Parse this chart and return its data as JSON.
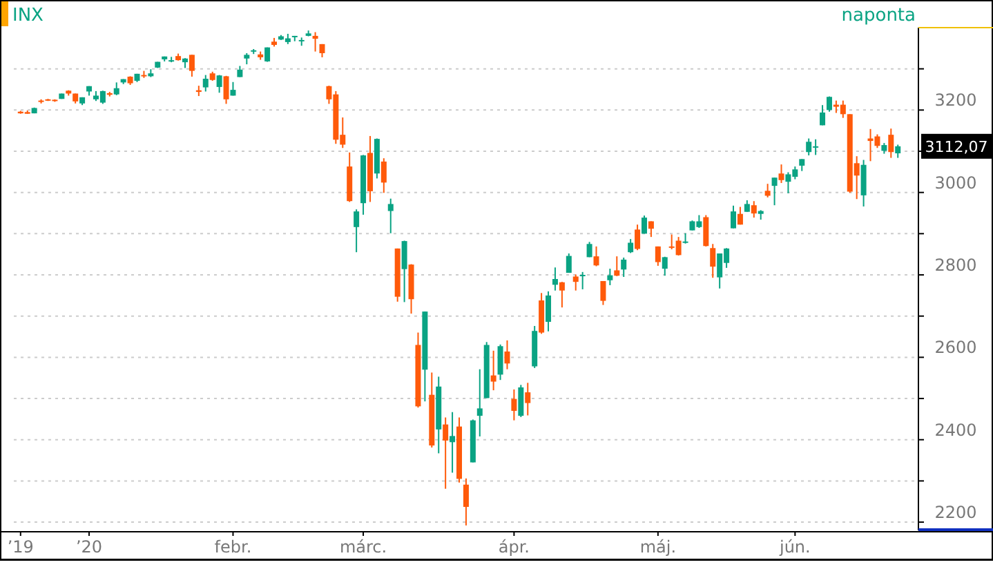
{
  "chart_data": {
    "type": "candlestick",
    "title": "INX",
    "subtitle": "naponta",
    "categories": [
      "’19",
      null,
      null,
      null,
      null,
      null,
      null,
      null,
      null,
      null,
      "’20",
      null,
      null,
      null,
      null,
      null,
      null,
      null,
      null,
      null,
      null,
      null,
      null,
      null,
      null,
      null,
      null,
      null,
      null,
      null,
      null,
      "febr.",
      null,
      null,
      null,
      null,
      null,
      null,
      null,
      null,
      null,
      null,
      null,
      null,
      null,
      null,
      null,
      null,
      null,
      null,
      "márc.",
      null,
      null,
      null,
      null,
      null,
      null,
      null,
      null,
      null,
      null,
      null,
      null,
      null,
      null,
      null,
      null,
      null,
      null,
      null,
      null,
      null,
      "ápr.",
      null,
      null,
      null,
      null,
      null,
      null,
      null,
      null,
      null,
      null,
      null,
      null,
      null,
      null,
      null,
      null,
      null,
      null,
      null,
      null,
      "máj.",
      null,
      null,
      null,
      null,
      null,
      null,
      null,
      null,
      null,
      null,
      null,
      null,
      null,
      null,
      null,
      null,
      null,
      null,
      null,
      "jún.",
      null,
      null,
      null,
      null,
      null,
      null,
      null,
      null,
      null,
      null,
      null,
      null,
      null,
      null,
      null
    ],
    "ohlc": [
      [
        3196,
        3198,
        3191,
        3192
      ],
      [
        3195,
        3199,
        3191,
        3191
      ],
      [
        3192,
        3206,
        3192,
        3205
      ],
      [
        3223,
        3226,
        3216,
        3221
      ],
      [
        3226,
        3227,
        3222,
        3224
      ],
      [
        3225,
        3226,
        3220,
        3223
      ],
      [
        3227,
        3240,
        3227,
        3240
      ],
      [
        3247,
        3248,
        3235,
        3240
      ],
      [
        3240,
        3240,
        3216,
        3221
      ],
      [
        3216,
        3231,
        3212,
        3231
      ],
      [
        3245,
        3258,
        3235,
        3258
      ],
      [
        3226,
        3246,
        3222,
        3235
      ],
      [
        3218,
        3247,
        3215,
        3246
      ],
      [
        3241,
        3244,
        3233,
        3237
      ],
      [
        3238,
        3267,
        3236,
        3253
      ],
      [
        3267,
        3275,
        3263,
        3275
      ],
      [
        3281,
        3282,
        3261,
        3265
      ],
      [
        3271,
        3288,
        3268,
        3288
      ],
      [
        3285,
        3295,
        3278,
        3283
      ],
      [
        3282,
        3299,
        3280,
        3289
      ],
      [
        3303,
        3317,
        3302,
        3317
      ],
      [
        3323,
        3330,
        3318,
        3330
      ],
      [
        3321,
        3329,
        3316,
        3321
      ],
      [
        3331,
        3337,
        3320,
        3321
      ],
      [
        3316,
        3326,
        3302,
        3325
      ],
      [
        3334,
        3334,
        3281,
        3295
      ],
      [
        3248,
        3259,
        3234,
        3244
      ],
      [
        3255,
        3285,
        3245,
        3276
      ],
      [
        3289,
        3293,
        3271,
        3273
      ],
      [
        3256,
        3285,
        3242,
        3284
      ],
      [
        3282,
        3283,
        3215,
        3226
      ],
      [
        3235,
        3268,
        3235,
        3249
      ],
      [
        3280,
        3307,
        3280,
        3298
      ],
      [
        3325,
        3338,
        3311,
        3334
      ],
      [
        3344,
        3348,
        3336,
        3345
      ],
      [
        3335,
        3342,
        3322,
        3328
      ],
      [
        3318,
        3352,
        3317,
        3352
      ],
      [
        3366,
        3375,
        3354,
        3358
      ],
      [
        3371,
        3382,
        3370,
        3379
      ],
      [
        3365,
        3385,
        3360,
        3374
      ],
      [
        3378,
        3380,
        3367,
        3380
      ],
      [
        3369,
        3376,
        3356,
        3370
      ],
      [
        3380,
        3393,
        3379,
        3386
      ],
      [
        3380,
        3389,
        3342,
        3373
      ],
      [
        3360,
        3360,
        3328,
        3338
      ],
      [
        3258,
        3259,
        3215,
        3226
      ],
      [
        3238,
        3246,
        3118,
        3128
      ],
      [
        3140,
        3182,
        3108,
        3116
      ],
      [
        3063,
        3097,
        2977,
        2979
      ],
      [
        2916,
        2959,
        2855,
        2954
      ],
      [
        2974,
        3091,
        2946,
        3090
      ],
      [
        3096,
        3137,
        2977,
        3003
      ],
      [
        3046,
        3131,
        3034,
        3130
      ],
      [
        3075,
        3083,
        2999,
        3024
      ],
      [
        2955,
        2985,
        2901,
        2972
      ],
      [
        2864,
        2864,
        2735,
        2747
      ],
      [
        2814,
        2883,
        2734,
        2882
      ],
      [
        2825,
        2826,
        2706,
        2741
      ],
      [
        2630,
        2660,
        2478,
        2481
      ],
      [
        2570,
        2711,
        2493,
        2711
      ],
      [
        2509,
        2563,
        2381,
        2386
      ],
      [
        2425,
        2553,
        2367,
        2529
      ],
      [
        2437,
        2454,
        2281,
        2398
      ],
      [
        2394,
        2467,
        2320,
        2409
      ],
      [
        2432,
        2454,
        2296,
        2305
      ],
      [
        2291,
        2306,
        2192,
        2237
      ],
      [
        2345,
        2449,
        2345,
        2447
      ],
      [
        2458,
        2571,
        2408,
        2476
      ],
      [
        2501,
        2637,
        2501,
        2630
      ],
      [
        2556,
        2616,
        2520,
        2541
      ],
      [
        2558,
        2631,
        2545,
        2627
      ],
      [
        2614,
        2641,
        2571,
        2585
      ],
      [
        2499,
        2522,
        2447,
        2470
      ],
      [
        2458,
        2533,
        2455,
        2527
      ],
      [
        2515,
        2538,
        2459,
        2489
      ],
      [
        2578,
        2676,
        2574,
        2664
      ],
      [
        2738,
        2756,
        2657,
        2660
      ],
      [
        2686,
        2760,
        2663,
        2750
      ],
      [
        2776,
        2818,
        2762,
        2790
      ],
      [
        2782,
        2783,
        2721,
        2762
      ],
      [
        2805,
        2852,
        2805,
        2846
      ],
      [
        2796,
        2801,
        2762,
        2783
      ],
      [
        2799,
        2807,
        2765,
        2800
      ],
      [
        2843,
        2880,
        2843,
        2875
      ],
      [
        2845,
        2869,
        2821,
        2823
      ],
      [
        2785,
        2785,
        2727,
        2737
      ],
      [
        2787,
        2815,
        2775,
        2799
      ],
      [
        2811,
        2845,
        2797,
        2798
      ],
      [
        2813,
        2842,
        2795,
        2837
      ],
      [
        2855,
        2887,
        2853,
        2878
      ],
      [
        2910,
        2922,
        2860,
        2863
      ],
      [
        2900,
        2944,
        2900,
        2939
      ],
      [
        2930,
        2930,
        2892,
        2912
      ],
      [
        2869,
        2869,
        2822,
        2831
      ],
      [
        2815,
        2844,
        2798,
        2843
      ],
      [
        2869,
        2898,
        2862,
        2868
      ],
      [
        2883,
        2892,
        2847,
        2848
      ],
      [
        2878,
        2901,
        2876,
        2881
      ],
      [
        2908,
        2932,
        2908,
        2930
      ],
      [
        2916,
        2945,
        2914,
        2930
      ],
      [
        2940,
        2945,
        2869,
        2870
      ],
      [
        2865,
        2875,
        2793,
        2820
      ],
      [
        2794,
        2852,
        2767,
        2852
      ],
      [
        2829,
        2865,
        2817,
        2864
      ],
      [
        2913,
        2968,
        2913,
        2954
      ],
      [
        2948,
        2965,
        2922,
        2922
      ],
      [
        2953,
        2981,
        2953,
        2972
      ],
      [
        2969,
        2979,
        2939,
        2949
      ],
      [
        2948,
        2957,
        2934,
        2955
      ],
      [
        3004,
        3021,
        2988,
        2992
      ],
      [
        3016,
        3036,
        2969,
        3036
      ],
      [
        3046,
        3068,
        3023,
        3030
      ],
      [
        3026,
        3049,
        2998,
        3044
      ],
      [
        3038,
        3063,
        3032,
        3056
      ],
      [
        3065,
        3081,
        3052,
        3081
      ],
      [
        3098,
        3131,
        3090,
        3123
      ],
      [
        3111,
        3129,
        3091,
        3112
      ],
      [
        3163,
        3212,
        3163,
        3194
      ],
      [
        3200,
        3233,
        3196,
        3232
      ],
      [
        3213,
        3223,
        3193,
        3208
      ],
      [
        3213,
        3223,
        3181,
        3190
      ],
      [
        3190,
        3190,
        2999,
        3002
      ],
      [
        3071,
        3088,
        2984,
        3041
      ],
      [
        2993,
        3079,
        2966,
        3067
      ],
      [
        3131,
        3154,
        3076,
        3125
      ],
      [
        3136,
        3141,
        3108,
        3113
      ],
      [
        3101,
        3120,
        3094,
        3115
      ],
      [
        3140,
        3155,
        3084,
        3098
      ],
      [
        3095,
        3116,
        3084,
        3112.07
      ]
    ],
    "ylim": [
      2180,
      3400
    ],
    "yticks": [
      2200,
      {
        "value": 2300,
        "label": null
      },
      2400,
      {
        "value": 2500,
        "label": null
      },
      2600,
      {
        "value": 2700,
        "label": null
      },
      2800,
      {
        "value": 2900,
        "label": null
      },
      3000,
      {
        "value": 3100,
        "label": null
      },
      3200,
      {
        "value": 3300,
        "label": null
      }
    ],
    "grid": "y",
    "annotations": [
      "3112,07"
    ]
  }
}
